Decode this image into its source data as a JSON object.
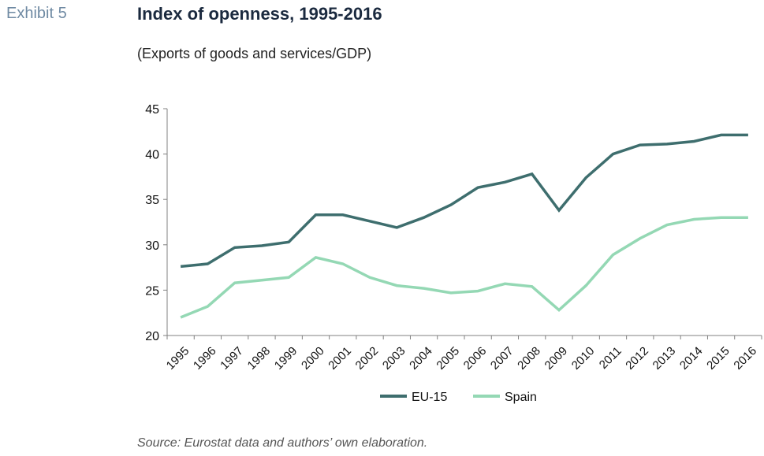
{
  "header": {
    "exhibit_label": "Exhibit 5",
    "title": "Index of openness, 1995-2016",
    "subtitle": "(Exports of goods and services/GDP)"
  },
  "footer": {
    "source": "Source: Eurostat data and authors’ own elaboration."
  },
  "colors": {
    "eu15": "#3e6e6e",
    "spain": "#94d8b4",
    "axis": "#808080"
  },
  "chart_data": {
    "type": "line",
    "title": "Index of openness, 1995-2016",
    "subtitle": "(Exports of goods and services/GDP)",
    "xlabel": "",
    "ylabel": "",
    "ylim": [
      20,
      45
    ],
    "yticks": [
      20,
      25,
      30,
      35,
      40,
      45
    ],
    "grid": false,
    "legend": "bottom",
    "categories": [
      "1995",
      "1996",
      "1997",
      "1998",
      "1999",
      "2000",
      "2001",
      "2002",
      "2003",
      "2004",
      "2005",
      "2006",
      "2007",
      "2008",
      "2009",
      "2010",
      "2011",
      "2012",
      "2013",
      "2014",
      "2015",
      "2016"
    ],
    "series": [
      {
        "name": "EU-15",
        "color": "#3e6e6e",
        "values": [
          27.6,
          27.9,
          29.7,
          29.9,
          30.3,
          33.3,
          33.3,
          32.6,
          31.9,
          33.0,
          34.4,
          36.3,
          36.9,
          37.8,
          33.8,
          37.4,
          40.0,
          41.0,
          41.1,
          41.4,
          42.1,
          42.1
        ]
      },
      {
        "name": "Spain",
        "color": "#94d8b4",
        "values": [
          22.0,
          23.2,
          25.8,
          26.1,
          26.4,
          28.6,
          27.9,
          26.4,
          25.5,
          25.2,
          24.7,
          24.9,
          25.7,
          25.4,
          22.8,
          25.5,
          28.9,
          30.7,
          32.2,
          32.8,
          33.0,
          33.0
        ]
      }
    ]
  }
}
